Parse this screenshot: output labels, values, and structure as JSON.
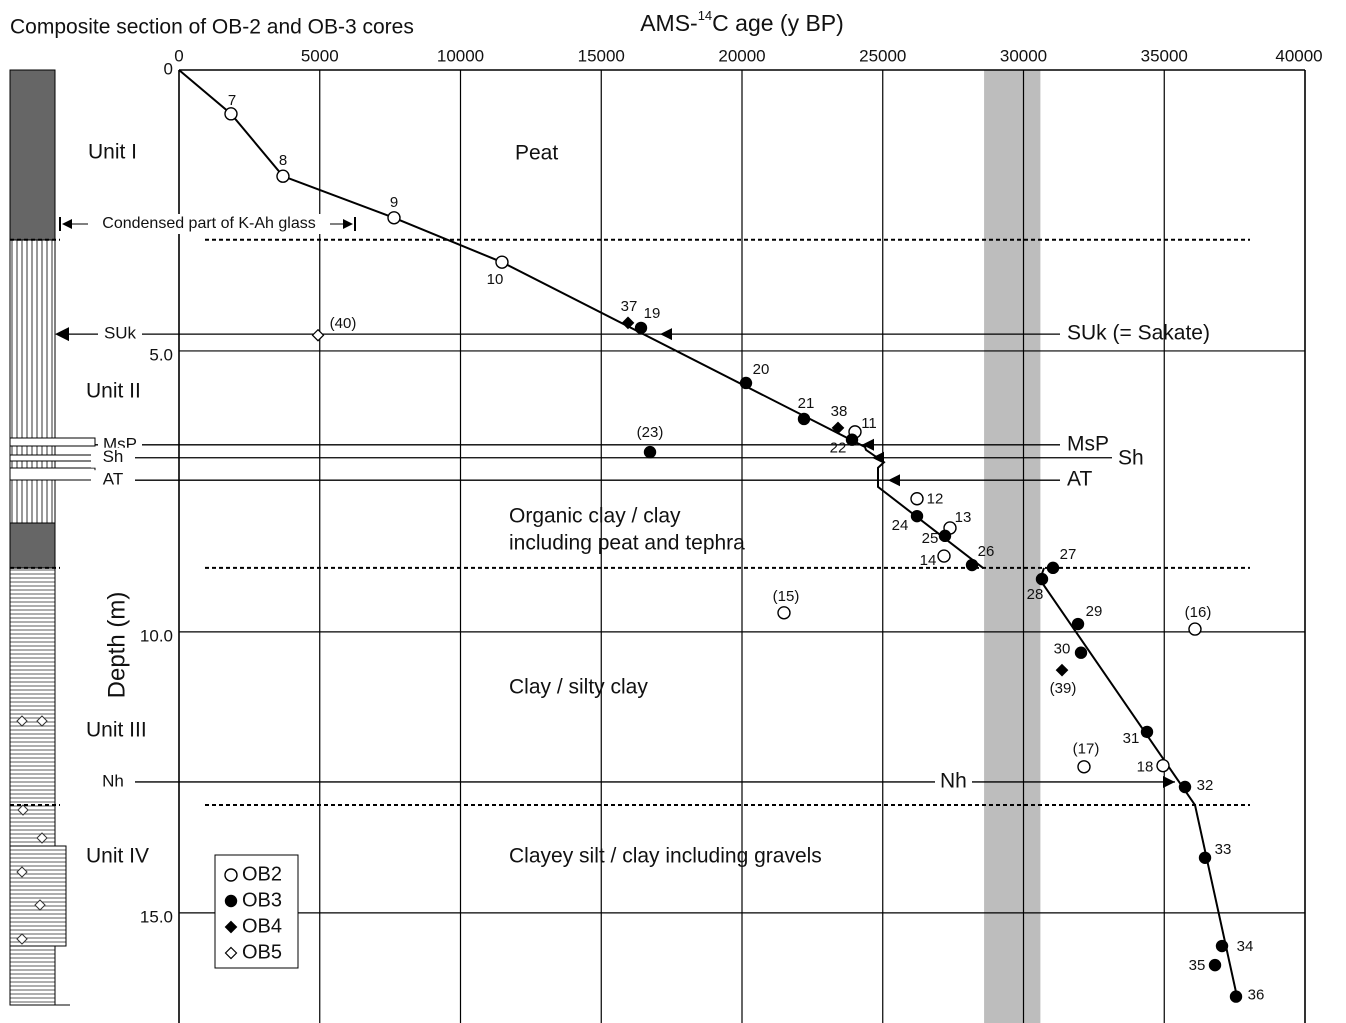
{
  "chart_data": {
    "type": "scatter",
    "title": "Composite section of OB-2 and OB-3 cores",
    "x_label": {
      "prefix": "AMS-",
      "sup": "14",
      "suffix": "C age (y BP)"
    },
    "y_label": "Depth (m)",
    "xlim": [
      0,
      40000
    ],
    "ylim": [
      0,
      16.96
    ],
    "y_inverted": true,
    "xticks": [
      0,
      5000,
      10000,
      15000,
      20000,
      25000,
      30000,
      35000,
      40000
    ],
    "yticks": [
      0,
      {
        "value": 5,
        "label": "5.0"
      },
      {
        "value": 10,
        "label": "10.0"
      },
      {
        "value": 15,
        "label": "15.0"
      }
    ],
    "grid": true,
    "shaded_band": [
      28600,
      30600
    ],
    "series": [
      {
        "name": "OB2",
        "marker": "open-circle",
        "color": "#000000",
        "x": [
          1847,
          3694,
          7638,
          11474,
          24014,
          26217,
          27389,
          27176,
          21492,
          36092,
          32149,
          34956
        ],
        "values": [
          0.78,
          1.89,
          2.63,
          3.42,
          6.44,
          7.63,
          8.15,
          8.65,
          9.66,
          9.95,
          12.4,
          12.38
        ],
        "labels": [
          "7",
          "8",
          "9",
          "10",
          "11",
          "12",
          "13",
          "14",
          "(15)",
          "(16)",
          "(17)",
          "18"
        ]
      },
      {
        "name": "OB3",
        "marker": "filled-circle",
        "color": "#000000",
        "x": [
          16412,
          20142,
          22202,
          23908,
          16732,
          26217,
          27211,
          28171,
          31048,
          30657,
          31936,
          32043,
          34387,
          35737,
          36448,
          37052,
          36803,
          37549
        ],
        "values": [
          4.59,
          5.57,
          6.21,
          6.58,
          6.8,
          7.94,
          8.29,
          8.81,
          8.86,
          9.06,
          9.86,
          10.37,
          11.78,
          12.76,
          14.02,
          15.59,
          15.93,
          16.49
        ],
        "labels": [
          "19",
          "20",
          "21",
          "22",
          "(23)",
          "24",
          "25",
          "26",
          "27",
          "28",
          "29",
          "30",
          "31",
          "32",
          "33",
          "34",
          "35",
          "36"
        ]
      },
      {
        "name": "OB4",
        "marker": "filled-diamond",
        "color": "#000000",
        "x": [
          15950,
          23410,
          31368
        ],
        "values": [
          4.5,
          6.37,
          10.68
        ],
        "labels": [
          "37",
          "38",
          "(39)"
        ]
      },
      {
        "name": "OB5",
        "marker": "open-diamond",
        "color": "#000000",
        "x": [
          4938
        ],
        "values": [
          4.72
        ],
        "labels": [
          "(40)"
        ]
      }
    ],
    "model_line": {
      "x": [
        0,
        1847,
        3694,
        7638,
        11474,
        24370,
        24405,
        25044,
        24831,
        24831,
        28561,
        null,
        30728,
        30586,
        36092,
        37584
      ],
      "y": [
        0,
        0.78,
        1.89,
        2.63,
        3.42,
        6.71,
        6.76,
        6.98,
        7.08,
        7.42,
        8.86,
        null,
        8.86,
        9.07,
        13.08,
        16.49
      ]
    },
    "unit_boundaries": [
      3.02,
      8.86,
      13.08
    ],
    "horizons": [
      {
        "depth": 4.7,
        "left_label": "SUk",
        "right_label": "SUk (= Sakate)"
      },
      {
        "depth": 6.67,
        "left_label": "MsP",
        "right_label": "MsP"
      },
      {
        "depth": 6.9,
        "left_label": "Sh",
        "right_label": "Sh"
      },
      {
        "depth": 7.3,
        "left_label": "AT",
        "right_label": "AT"
      },
      {
        "depth": 12.67,
        "left_label": "Nh",
        "right_label": "Nh"
      }
    ],
    "units": [
      "Unit I",
      "Unit II",
      "Unit III",
      "Unit IV"
    ],
    "facies": [
      "Peat",
      "Organic clay / clay",
      "including peat and tephra",
      "Clay / silty clay",
      "Clayey silt / clay including gravels"
    ],
    "condensed_note": "Condensed part of K-Ah glass"
  }
}
